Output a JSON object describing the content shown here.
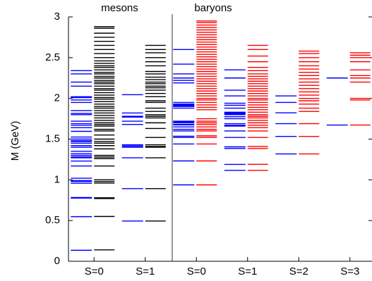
{
  "chart_data": {
    "type": "levels",
    "y_label": "M (GeV)",
    "group_labels": [
      "mesons",
      "baryons"
    ],
    "categories": [
      "S=0",
      "S=1",
      "S=0",
      "S=1",
      "S=2",
      "S=3"
    ],
    "ylim": [
      0,
      3
    ],
    "yticks": [
      0,
      0.5,
      1,
      1.5,
      2,
      2.5,
      3
    ],
    "series": [
      {
        "color": "#0000ff",
        "values": [
          [
            0.135,
            0.548,
            0.775,
            0.783,
            0.958,
            0.98,
            0.99,
            1.02,
            1.17,
            1.23,
            1.27,
            1.28,
            1.3,
            1.32,
            1.35,
            1.4,
            1.42,
            1.45,
            1.47,
            1.48,
            1.5,
            1.525,
            1.595,
            1.64,
            1.67,
            1.69,
            1.72,
            1.8,
            1.815,
            1.85,
            1.95,
            1.98,
            2.01,
            2.02,
            2.15,
            2.2,
            2.3,
            2.34
          ],
          [
            0.494,
            0.892,
            1.27,
            1.4,
            1.41,
            1.425,
            1.43,
            1.68,
            1.72,
            1.77,
            1.78,
            1.82,
            2.045
          ],
          [
            0.938,
            1.232,
            1.44,
            1.52,
            1.535,
            1.6,
            1.62,
            1.65,
            1.675,
            1.68,
            1.7,
            1.71,
            1.72,
            1.88,
            1.9,
            1.905,
            1.91,
            1.92,
            1.93,
            1.95,
            2.19,
            2.22,
            2.25,
            2.3,
            2.42,
            2.6
          ],
          [
            1.116,
            1.189,
            1.385,
            1.405,
            1.52,
            1.6,
            1.66,
            1.67,
            1.69,
            1.75,
            1.775,
            1.8,
            1.81,
            1.82,
            1.83,
            1.88,
            1.915,
            1.94,
            2.03,
            2.1,
            2.25,
            2.35
          ],
          [
            1.318,
            1.533,
            1.69,
            1.823,
            1.95,
            2.03
          ],
          [
            1.672,
            2.25
          ]
        ]
      },
      {
        "color": "#000000",
        "values": [
          [
            0.14,
            0.55,
            0.77,
            0.78,
            0.96,
            0.98,
            1.0,
            1.17,
            1.26,
            1.28,
            1.3,
            1.38,
            1.42,
            1.45,
            1.47,
            1.5,
            1.55,
            1.6,
            1.62,
            1.66,
            1.68,
            1.7,
            1.73,
            1.76,
            1.79,
            1.82,
            1.85,
            1.88,
            1.9,
            1.93,
            1.96,
            1.99,
            2.01,
            2.04,
            2.07,
            2.1,
            2.12,
            2.15,
            2.18,
            2.2,
            2.22,
            2.25,
            2.27,
            2.3,
            2.32,
            2.35,
            2.38,
            2.4,
            2.43,
            2.46,
            2.5,
            2.55,
            2.6,
            2.65,
            2.7,
            2.75,
            2.8,
            2.86,
            2.88
          ],
          [
            0.494,
            0.892,
            1.27,
            1.4,
            1.41,
            1.43,
            1.52,
            1.63,
            1.7,
            1.76,
            1.78,
            1.8,
            1.84,
            1.88,
            1.95,
            1.97,
            2.02,
            2.06,
            2.1,
            2.13,
            2.15,
            2.18,
            2.2,
            2.23,
            2.26,
            2.3,
            2.33,
            2.4,
            2.45,
            2.5,
            2.56,
            2.6,
            2.65
          ],
          null,
          null,
          null,
          null
        ]
      },
      {
        "color": "#ff0000",
        "values": [
          null,
          null,
          [
            0.938,
            1.232,
            1.44,
            1.52,
            1.54,
            1.6,
            1.62,
            1.65,
            1.68,
            1.7,
            1.72,
            1.75,
            1.86,
            1.89,
            1.92,
            1.95,
            1.98,
            2.0,
            2.03,
            2.06,
            2.09,
            2.12,
            2.15,
            2.18,
            2.21,
            2.24,
            2.27,
            2.3,
            2.33,
            2.36,
            2.39,
            2.42,
            2.45,
            2.48,
            2.51,
            2.54,
            2.57,
            2.6,
            2.63,
            2.66,
            2.69,
            2.72,
            2.75,
            2.78,
            2.81,
            2.84,
            2.87,
            2.9,
            2.93,
            2.95
          ],
          [
            1.116,
            1.19,
            1.385,
            1.41,
            1.52,
            1.6,
            1.64,
            1.67,
            1.7,
            1.73,
            1.76,
            1.78,
            1.8,
            1.83,
            1.86,
            1.89,
            1.92,
            1.95,
            1.98,
            2.0,
            2.03,
            2.06,
            2.09,
            2.12,
            2.15,
            2.18,
            2.21,
            2.24,
            2.27,
            2.3,
            2.34,
            2.38,
            2.45,
            2.52,
            2.6,
            2.65
          ],
          [
            1.318,
            1.533,
            1.69,
            1.84,
            1.88,
            1.93,
            1.97,
            2.0,
            2.04,
            2.08,
            2.12,
            2.16,
            2.2,
            2.24,
            2.28,
            2.32,
            2.36,
            2.4,
            2.45,
            2.5,
            2.55,
            2.58
          ],
          [
            1.672,
            1.98,
            2.0,
            2.2,
            2.25,
            2.28,
            2.35,
            2.45,
            2.5,
            2.53,
            2.56
          ]
        ]
      }
    ]
  }
}
